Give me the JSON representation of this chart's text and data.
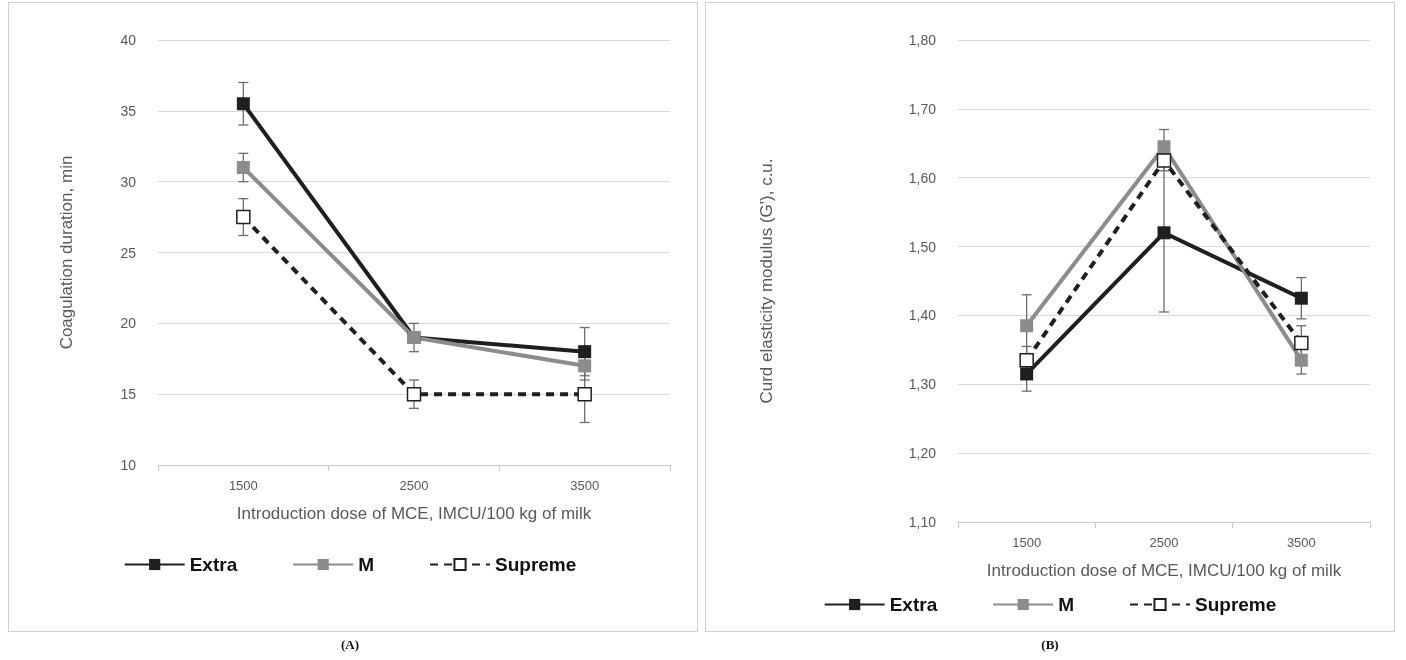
{
  "chart_data": [
    {
      "type": "line",
      "xlabel": "Introduction dose of MCE, IMCU/100 kg of milk",
      "ylabel": "Coagulation duration, min",
      "categories": [
        "1500",
        "2500",
        "3500"
      ],
      "series": [
        {
          "name": "Extra",
          "color": "#1f1f1f",
          "values": [
            35.5,
            19,
            18
          ],
          "errors": [
            1.5,
            1,
            1.7
          ],
          "line_style": "solid"
        },
        {
          "name": "M",
          "color": "#8c8c8c",
          "values": [
            31,
            19,
            17
          ],
          "errors": [
            1,
            1,
            1
          ],
          "line_style": "solid"
        },
        {
          "name": "Supreme",
          "color": "#1f1f1f",
          "values": [
            27.5,
            15,
            15
          ],
          "errors": [
            1.3,
            1,
            2
          ],
          "line_style": "dashed"
        }
      ],
      "ylim": [
        10,
        40
      ],
      "yticks": [
        10,
        15,
        20,
        25,
        30,
        35,
        40
      ],
      "grid": "y",
      "legend": "bottom",
      "marker": "square",
      "annotations": [
        "(A)"
      ]
    },
    {
      "type": "line",
      "xlabel": "Introduction dose of MCE, IMCU/100 kg of milk",
      "ylabel": "Curd elasticity modulus (G'), c.u.",
      "categories": [
        "1500",
        "2500",
        "3500"
      ],
      "series": [
        {
          "name": "Extra",
          "color": "#1f1f1f",
          "values": [
            1.315,
            1.52,
            1.425
          ],
          "errors": [
            0.025,
            0.115,
            0.03
          ],
          "line_style": "solid"
        },
        {
          "name": "M",
          "color": "#8c8c8c",
          "values": [
            1.385,
            1.645,
            1.335
          ],
          "errors": [
            0.045,
            0.025,
            0.02
          ],
          "line_style": "solid"
        },
        {
          "name": "Supreme",
          "color": "#1f1f1f",
          "values": [
            1.335,
            1.625,
            1.36
          ],
          "errors": [
            0.02,
            0.015,
            0.025
          ],
          "line_style": "dashed"
        }
      ],
      "ylim": [
        1.1,
        1.8
      ],
      "yticks": [
        {
          "value": 1.1,
          "label": "1,10"
        },
        {
          "value": 1.2,
          "label": "1,20"
        },
        {
          "value": 1.3,
          "label": "1,30"
        },
        {
          "value": 1.4,
          "label": "1,40"
        },
        {
          "value": 1.5,
          "label": "1,50"
        },
        {
          "value": 1.6,
          "label": "1,60"
        },
        {
          "value": 1.7,
          "label": "1,70"
        },
        {
          "value": 1.8,
          "label": "1,80"
        }
      ],
      "grid": "y",
      "legend": "bottom",
      "marker": "square",
      "annotations": [
        "(B)"
      ]
    }
  ]
}
